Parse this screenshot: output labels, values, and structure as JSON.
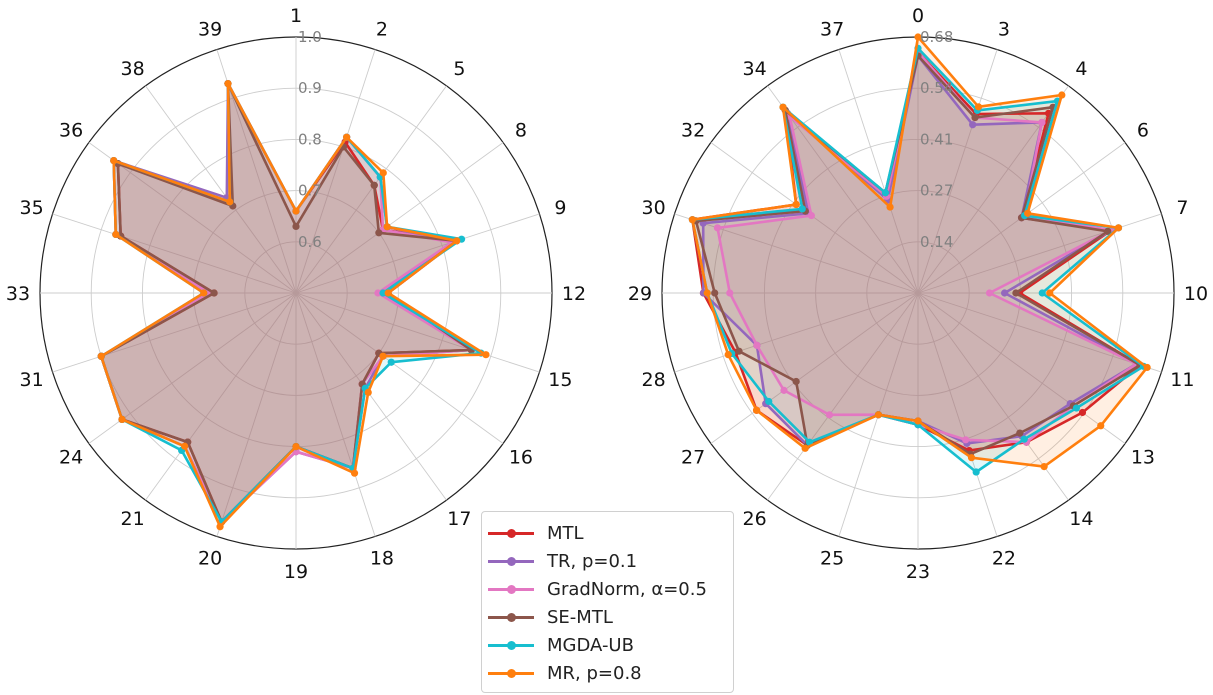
{
  "legend": [
    {
      "name": "MTL",
      "color": "#d62728"
    },
    {
      "name": "TR, p=0.1",
      "color": "#9467bd"
    },
    {
      "name": "GradNorm, α=0.5",
      "color": "#e377c2"
    },
    {
      "name": "SE-MTL",
      "color": "#8c564b"
    },
    {
      "name": "MGDA-UB",
      "color": "#17becf"
    },
    {
      "name": "MR, p=0.8",
      "color": "#ff7f0e"
    }
  ],
  "chart_data": [
    {
      "type": "radar",
      "radial_min": 0.5,
      "radial_max": 1.0,
      "radial_ticks": [
        "0.6",
        "0.7",
        "0.8",
        "0.9",
        "1.0"
      ],
      "radial_tick_values": [
        0.6,
        0.7,
        0.8,
        0.9,
        1.0
      ],
      "categories": [
        "1",
        "2",
        "5",
        "8",
        "9",
        "12",
        "15",
        "16",
        "17",
        "18",
        "19",
        "20",
        "21",
        "24",
        "31",
        "33",
        "35",
        "36",
        "38",
        "39"
      ],
      "series": [
        {
          "name": "MTL",
          "values": [
            0.66,
            0.81,
            0.76,
            0.71,
            0.83,
            0.68,
            0.86,
            0.7,
            0.72,
            0.86,
            0.8,
            0.97,
            0.86,
            0.92,
            0.9,
            0.66,
            0.86,
            0.93,
            0.72,
            0.93
          ]
        },
        {
          "name": "TR, p=0.1",
          "values": [
            0.66,
            0.82,
            0.78,
            0.72,
            0.82,
            0.67,
            0.86,
            0.71,
            0.73,
            0.86,
            0.81,
            0.97,
            0.87,
            0.92,
            0.9,
            0.67,
            0.87,
            0.94,
            0.73,
            0.93
          ]
        },
        {
          "name": "GradNorm, α=0.5",
          "values": [
            0.66,
            0.82,
            0.78,
            0.71,
            0.82,
            0.66,
            0.86,
            0.71,
            0.72,
            0.86,
            0.81,
            0.97,
            0.87,
            0.92,
            0.9,
            0.67,
            0.87,
            0.94,
            0.72,
            0.93
          ]
        },
        {
          "name": "SE-MTL",
          "values": [
            0.63,
            0.8,
            0.76,
            0.7,
            0.83,
            0.68,
            0.86,
            0.7,
            0.72,
            0.86,
            0.8,
            0.97,
            0.86,
            0.92,
            0.9,
            0.66,
            0.86,
            0.93,
            0.71,
            0.93
          ]
        },
        {
          "name": "MGDA-UB",
          "values": [
            0.66,
            0.82,
            0.78,
            0.72,
            0.84,
            0.67,
            0.88,
            0.73,
            0.73,
            0.86,
            0.8,
            0.97,
            0.88,
            0.92,
            0.9,
            0.68,
            0.87,
            0.94,
            0.72,
            0.93
          ]
        },
        {
          "name": "MR, p=0.8",
          "values": [
            0.66,
            0.82,
            0.79,
            0.72,
            0.83,
            0.68,
            0.89,
            0.71,
            0.74,
            0.87,
            0.8,
            0.98,
            0.87,
            0.92,
            0.9,
            0.68,
            0.87,
            0.94,
            0.72,
            0.93
          ]
        }
      ]
    },
    {
      "type": "radar",
      "radial_min": 0.0,
      "radial_max": 0.68,
      "radial_ticks": [
        "0.14",
        "0.27",
        "0.41",
        "0.54",
        "0.68"
      ],
      "radial_tick_values": [
        0.136,
        0.272,
        0.408,
        0.544,
        0.68
      ],
      "categories": [
        "0",
        "3",
        "4",
        "6",
        "7",
        "10",
        "11",
        "13",
        "14",
        "22",
        "23",
        "25",
        "26",
        "27",
        "28",
        "29",
        "30",
        "32",
        "34",
        "37"
      ],
      "series": [
        {
          "name": "MTL",
          "values": [
            0.64,
            0.5,
            0.59,
            0.34,
            0.54,
            0.27,
            0.62,
            0.54,
            0.49,
            0.44,
            0.35,
            0.34,
            0.5,
            0.53,
            0.51,
            0.57,
            0.63,
            0.4,
            0.6,
            0.27
          ]
        },
        {
          "name": "TR, p=0.1",
          "values": [
            0.63,
            0.47,
            0.56,
            0.34,
            0.54,
            0.23,
            0.61,
            0.5,
            0.47,
            0.42,
            0.34,
            0.34,
            0.5,
            0.5,
            0.45,
            0.57,
            0.6,
            0.36,
            0.59,
            0.26
          ]
        },
        {
          "name": "GradNorm, α=0.5",
          "values": [
            0.64,
            0.49,
            0.56,
            0.35,
            0.54,
            0.19,
            0.61,
            0.51,
            0.49,
            0.41,
            0.35,
            0.34,
            0.4,
            0.44,
            0.45,
            0.5,
            0.56,
            0.35,
            0.58,
            0.27
          ]
        },
        {
          "name": "SE-MTL",
          "values": [
            0.63,
            0.49,
            0.61,
            0.34,
            0.53,
            0.26,
            0.62,
            0.51,
            0.46,
            0.45,
            0.34,
            0.34,
            0.5,
            0.4,
            0.5,
            0.54,
            0.62,
            0.37,
            0.6,
            0.28
          ]
        },
        {
          "name": "MGDA-UB",
          "values": [
            0.65,
            0.51,
            0.63,
            0.35,
            0.56,
            0.33,
            0.63,
            0.52,
            0.48,
            0.5,
            0.35,
            0.34,
            0.49,
            0.49,
            0.52,
            0.56,
            0.63,
            0.38,
            0.61,
            0.28
          ]
        },
        {
          "name": "MR, p=0.8",
          "values": [
            0.68,
            0.52,
            0.65,
            0.36,
            0.56,
            0.35,
            0.64,
            0.6,
            0.57,
            0.46,
            0.34,
            0.34,
            0.51,
            0.53,
            0.53,
            0.56,
            0.63,
            0.4,
            0.61,
            0.24
          ]
        }
      ]
    }
  ]
}
